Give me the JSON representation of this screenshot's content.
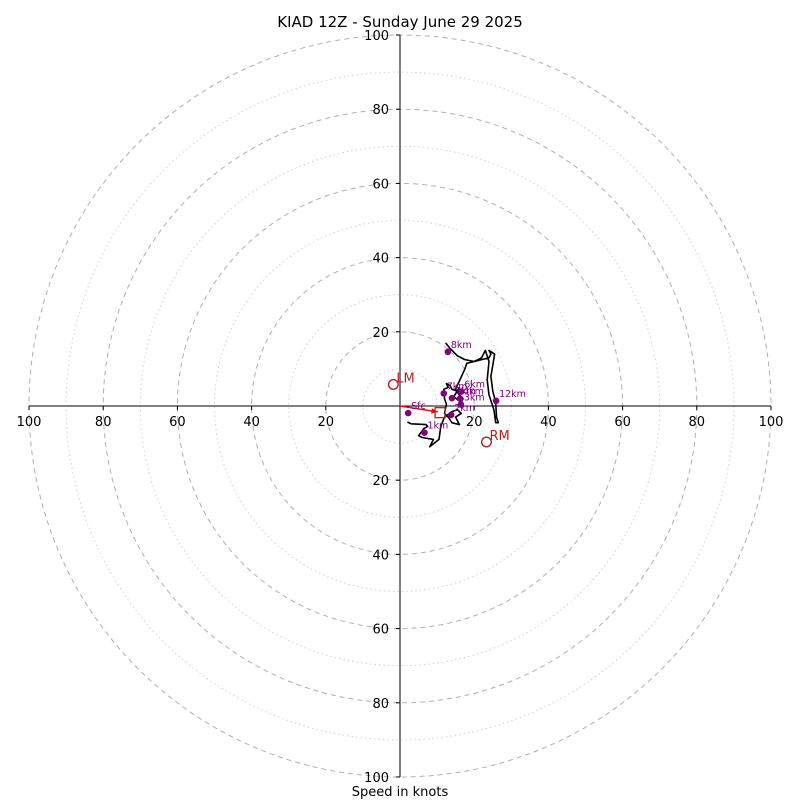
{
  "chart_data": {
    "type": "hodograph",
    "title": "KIAD 12Z - Sunday June 29 2025",
    "xlabel": "Speed in knots",
    "rlim": [
      0,
      100
    ],
    "ring_major": [
      20,
      40,
      60,
      80,
      100
    ],
    "ring_minor": [
      10,
      30,
      50,
      70,
      90
    ],
    "x_tick_labels": [
      "100",
      "80",
      "60",
      "40",
      "20",
      "20",
      "40",
      "60",
      "80",
      "100"
    ],
    "y_tick_labels": [
      "100",
      "80",
      "60",
      "40",
      "20",
      "20",
      "40",
      "60",
      "80",
      "100"
    ],
    "units": "knots",
    "hodograph_trace": [
      [
        2.0,
        -4.3
      ],
      [
        3.0,
        -4.8
      ],
      [
        7.0,
        -5.0
      ],
      [
        7.5,
        -5.5
      ],
      [
        6.5,
        -6.0
      ],
      [
        5.0,
        -8.0
      ],
      [
        6.0,
        -8.5
      ],
      [
        9.0,
        -9.0
      ],
      [
        8.0,
        -11.0
      ],
      [
        10.5,
        -9.0
      ],
      [
        11.0,
        -5.5
      ],
      [
        12.0,
        -3.0
      ],
      [
        14.0,
        -1.5
      ],
      [
        15.5,
        -1.0
      ],
      [
        16.5,
        -2.0
      ],
      [
        15.0,
        -3.0
      ],
      [
        16.0,
        -5.0
      ],
      [
        14.0,
        -4.5
      ],
      [
        13.0,
        -3.0
      ],
      [
        12.0,
        -2.0
      ],
      [
        12.5,
        0.5
      ],
      [
        12.0,
        2.0
      ],
      [
        11.8,
        4.5
      ],
      [
        13.0,
        5.0
      ],
      [
        12.5,
        6.0
      ],
      [
        13.5,
        5.5
      ],
      [
        14.0,
        4.5
      ],
      [
        15.5,
        4.0
      ],
      [
        16.0,
        5.0
      ],
      [
        14.5,
        2.5
      ],
      [
        16.5,
        1.0
      ],
      [
        17.0,
        2.0
      ],
      [
        16.0,
        3.0
      ],
      [
        15.0,
        4.5
      ],
      [
        17.5,
        10.0
      ],
      [
        18.0,
        11.5
      ],
      [
        20.0,
        12.0
      ],
      [
        22.0,
        12.5
      ],
      [
        24.0,
        13.0
      ],
      [
        24.5,
        14.0
      ],
      [
        24.0,
        15.0
      ],
      [
        25.5,
        14.0
      ],
      [
        25.0,
        11.0
      ],
      [
        24.5,
        8.0
      ],
      [
        25.0,
        4.0
      ],
      [
        25.8,
        1.0
      ],
      [
        26.0,
        -3.0
      ],
      [
        26.5,
        -4.5
      ],
      [
        25.8,
        -4.5
      ],
      [
        25.3,
        -1.0
      ],
      [
        24.0,
        3.0
      ],
      [
        23.5,
        7.0
      ],
      [
        24.0,
        12.0
      ],
      [
        23.0,
        15.0
      ],
      [
        22.0,
        13.0
      ],
      [
        20.0,
        12.0
      ],
      [
        17.5,
        12.5
      ],
      [
        15.5,
        13.5
      ],
      [
        13.5,
        15.5
      ],
      [
        12.3,
        17.0
      ]
    ],
    "height_markers": [
      {
        "label": "Sfc",
        "u": 2.2,
        "v": -1.9
      },
      {
        "label": "1km",
        "u": 6.6,
        "v": -7.2
      },
      {
        "label": "2km",
        "u": 13.8,
        "v": -2.4
      },
      {
        "label": "3km",
        "u": 16.4,
        "v": 0.4
      },
      {
        "label": "4km",
        "u": 16.2,
        "v": 2.0
      },
      {
        "label": "5km",
        "u": 14.0,
        "v": 2.1
      },
      {
        "label": "6km",
        "u": 16.5,
        "v": 3.9
      },
      {
        "label": "7km",
        "u": 11.8,
        "v": 3.4
      },
      {
        "label": "8km",
        "u": 12.9,
        "v": 14.6
      },
      {
        "label": "12km",
        "u": 25.9,
        "v": 1.4
      }
    ],
    "storm_motion": [
      {
        "label": "LM",
        "u": -1.8,
        "v": 5.8
      },
      {
        "label": "RM",
        "u": 23.3,
        "v": -9.7
      }
    ],
    "mean_wind": {
      "u": 10.8,
      "v": -1.8
    },
    "shear_vector": {
      "from": [
        0.0,
        0.0
      ],
      "to": [
        10.2,
        -1.6
      ]
    },
    "colors": {
      "trace": "#000000",
      "marker": "#800080",
      "storm_motion": "#b22222",
      "shear_vector": "#ff0000",
      "ring": "#b0b0b0",
      "axis": "#000000"
    }
  }
}
